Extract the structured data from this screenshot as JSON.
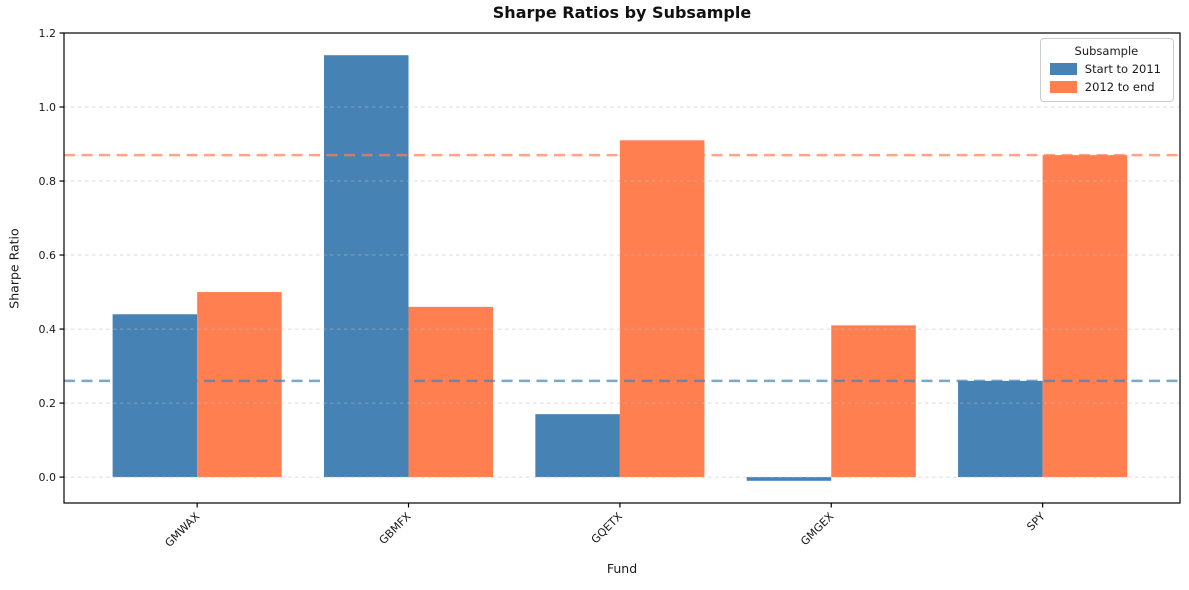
{
  "chart_data": {
    "type": "bar",
    "title": "Sharpe Ratios by Subsample",
    "xlabel": "Fund",
    "ylabel": "Sharpe Ratio",
    "categories": [
      "GMWAX",
      "GBMFX",
      "GQETX",
      "GMGEX",
      "SPY"
    ],
    "series": [
      {
        "name": "Start to 2011",
        "color": "#4682b4",
        "values": [
          0.44,
          1.14,
          0.17,
          -0.01,
          0.26
        ]
      },
      {
        "name": "2012 to end",
        "color": "#ff7f50",
        "values": [
          0.5,
          0.46,
          0.91,
          0.41,
          0.87
        ]
      }
    ],
    "benchmark_lines": [
      {
        "name": "spy-sharpe-start-to-2011",
        "value": 0.26,
        "color": "rgba(70,130,180,0.7)"
      },
      {
        "name": "spy-sharpe-2012-to-end",
        "value": 0.87,
        "color": "rgba(255,127,80,0.7)"
      }
    ],
    "ylim": [
      -0.07,
      1.2
    ],
    "xlim": [
      -0.63,
      4.65
    ],
    "yticks": [
      0.0,
      0.2,
      0.4,
      0.6,
      0.8,
      1.0,
      1.2
    ],
    "grid": true,
    "bar_width": 0.4,
    "legend": {
      "title": "Subsample",
      "position": "upper right"
    },
    "colors": {
      "spine": "#000000",
      "gridline": "rgba(190,190,190,0.55)",
      "text": "#1a1a1a",
      "background": "#ffffff"
    }
  }
}
